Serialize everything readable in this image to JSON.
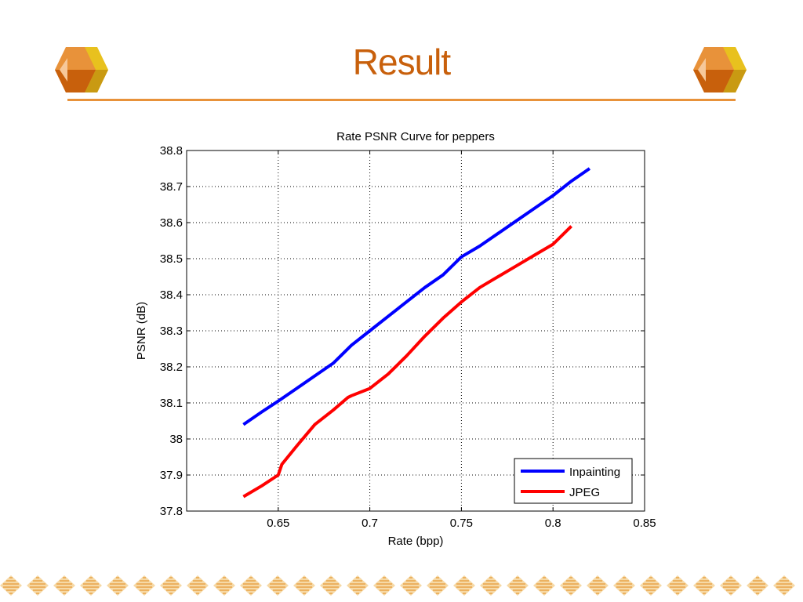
{
  "slide": {
    "title": "Result",
    "accent_color": "#c8600c",
    "rule_color": "#e8923a",
    "decoration_icon": "hexagon-cube-icon",
    "footer_pattern": "diamond-band"
  },
  "chart_data": {
    "type": "line",
    "title": "Rate PSNR Curve for peppers",
    "xlabel": "Rate (bpp)",
    "ylabel": "PSNR (dB)",
    "xlim": [
      0.6,
      0.85
    ],
    "ylim": [
      37.8,
      38.8
    ],
    "xticks": [
      0.65,
      0.7,
      0.75,
      0.8,
      0.85
    ],
    "xtick_labels": [
      "0.65",
      "0.7",
      "0.75",
      "0.8",
      "0.85"
    ],
    "yticks": [
      37.8,
      37.9,
      38.0,
      38.1,
      38.2,
      38.3,
      38.4,
      38.5,
      38.6,
      38.7,
      38.8
    ],
    "ytick_labels": [
      "37.8",
      "37.9",
      "38",
      "38.1",
      "38.2",
      "38.3",
      "38.4",
      "38.5",
      "38.6",
      "38.7",
      "38.8"
    ],
    "grid": true,
    "legend_position": "bottom-right",
    "series": [
      {
        "name": "Inpainting",
        "color": "#0000ff",
        "x": [
          0.631,
          0.641,
          0.65,
          0.66,
          0.67,
          0.68,
          0.69,
          0.7,
          0.71,
          0.72,
          0.73,
          0.74,
          0.75,
          0.76,
          0.77,
          0.78,
          0.79,
          0.8,
          0.81,
          0.82
        ],
        "y": [
          38.04,
          38.075,
          38.105,
          38.14,
          38.175,
          38.21,
          38.26,
          38.3,
          38.34,
          38.38,
          38.42,
          38.455,
          38.505,
          38.535,
          38.57,
          38.605,
          38.64,
          38.675,
          38.715,
          38.75
        ]
      },
      {
        "name": "JPEG",
        "color": "#ff0000",
        "x": [
          0.631,
          0.641,
          0.65,
          0.652,
          0.66,
          0.67,
          0.68,
          0.688,
          0.69,
          0.7,
          0.71,
          0.72,
          0.73,
          0.74,
          0.75,
          0.76,
          0.77,
          0.78,
          0.79,
          0.8,
          0.802,
          0.81
        ],
        "y": [
          37.84,
          37.87,
          37.9,
          37.93,
          37.98,
          38.04,
          38.08,
          38.115,
          38.12,
          38.14,
          38.18,
          38.23,
          38.285,
          38.335,
          38.38,
          38.42,
          38.45,
          38.48,
          38.51,
          38.54,
          38.55,
          38.59
        ]
      }
    ]
  }
}
